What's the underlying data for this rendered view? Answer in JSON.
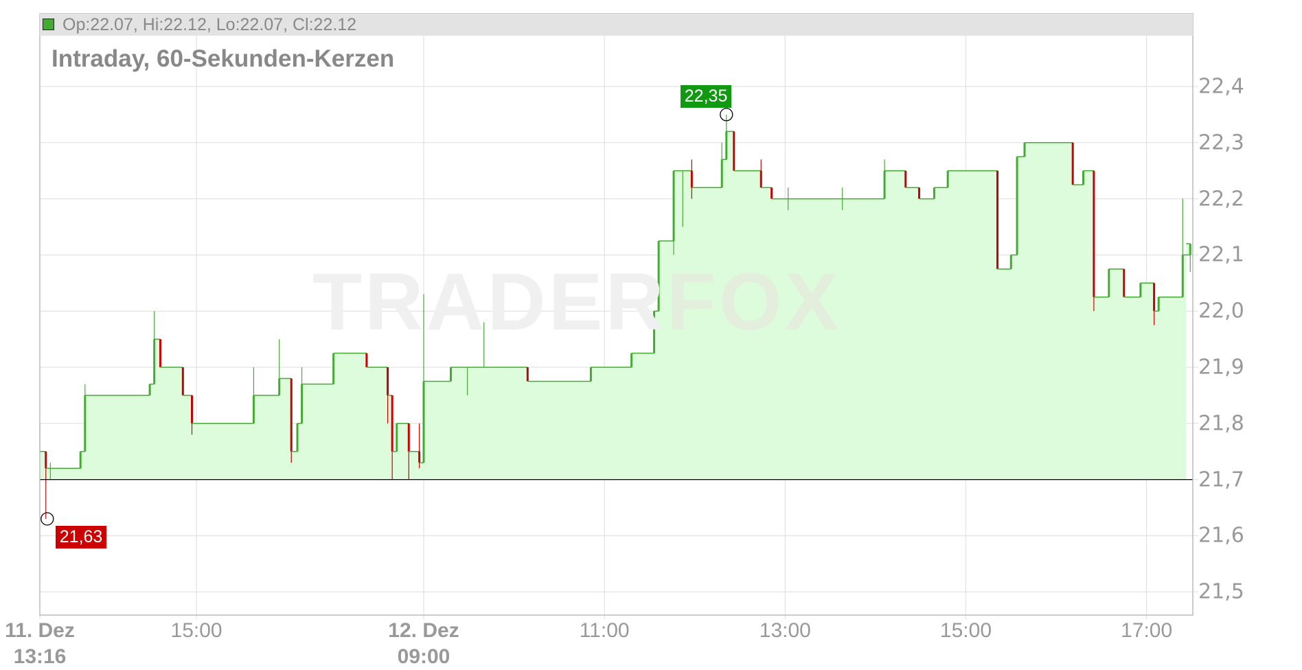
{
  "legend": {
    "text": "Op:22.07, Hi:22.12, Lo:22.07, Cl:22.12",
    "swatch_color": "#44aa33"
  },
  "title": "Intraday, 60-Sekunden-Kerzen",
  "watermark": {
    "part1": "TRADER",
    "part2": "FOX"
  },
  "colors": {
    "up": "#44aa33",
    "down": "#cc0000",
    "fill": "#dcfcdc",
    "grid": "#dddddd",
    "baseline": "#000000"
  },
  "chart_data": {
    "type": "line",
    "title": "Intraday, 60-Sekunden-Kerzen",
    "ylim": [
      21.45,
      22.5
    ],
    "yticks": [
      "22,4",
      "22,3",
      "22,2",
      "22,1",
      "22,0",
      "21,9",
      "21,8",
      "21,7",
      "21,6",
      "21,5"
    ],
    "ytick_values": [
      22.4,
      22.3,
      22.2,
      22.1,
      22.0,
      21.9,
      21.8,
      21.7,
      21.6,
      21.5
    ],
    "xticks": [
      {
        "label": "11. Dez",
        "sub": "13:16",
        "day": 1,
        "time": "13:16",
        "bold": true
      },
      {
        "label": "15:00",
        "sub": "",
        "day": 1,
        "time": "15:00",
        "bold": false
      },
      {
        "label": "12. Dez",
        "sub": "09:00",
        "day": 2,
        "time": "09:00",
        "bold": true
      },
      {
        "label": "11:00",
        "sub": "",
        "day": 2,
        "time": "11:00",
        "bold": false
      },
      {
        "label": "13:00",
        "sub": "",
        "day": 2,
        "time": "13:00",
        "bold": false
      },
      {
        "label": "15:00",
        "sub": "",
        "day": 2,
        "time": "15:00",
        "bold": false
      },
      {
        "label": "17:00",
        "sub": "",
        "day": 2,
        "time": "17:00",
        "bold": false
      }
    ],
    "sessions": [
      {
        "day": 1,
        "start": "13:16",
        "end": "17:30"
      },
      {
        "day": 2,
        "start": "09:00",
        "end": "17:30"
      }
    ],
    "baseline": 21.7,
    "grid": true,
    "high": {
      "value": 22.35,
      "label": "22,35",
      "day": 2,
      "time": "12:21"
    },
    "low": {
      "value": 21.63,
      "label": "21,63",
      "day": 1,
      "time": "13:20"
    },
    "columns": [
      "day",
      "time",
      "close",
      "high",
      "low"
    ],
    "series": [
      [
        1,
        "13:16",
        21.75,
        21.8,
        21.75
      ],
      [
        1,
        "13:20",
        21.72,
        21.75,
        21.63
      ],
      [
        1,
        "13:23",
        21.72,
        21.73,
        21.7
      ],
      [
        1,
        "13:43",
        21.75,
        21.75,
        21.72
      ],
      [
        1,
        "13:46",
        21.85,
        21.87,
        21.85
      ],
      [
        1,
        "14:29",
        21.87,
        21.87,
        21.85
      ],
      [
        1,
        "14:32",
        21.95,
        22.0,
        21.92
      ],
      [
        1,
        "14:36",
        21.9,
        21.92,
        21.9
      ],
      [
        1,
        "14:51",
        21.85,
        21.85,
        21.85
      ],
      [
        1,
        "14:57",
        21.8,
        21.8,
        21.78
      ],
      [
        1,
        "15:02",
        21.8,
        21.8,
        21.8
      ],
      [
        1,
        "15:38",
        21.85,
        21.9,
        21.85
      ],
      [
        1,
        "15:55",
        21.88,
        21.95,
        21.85
      ],
      [
        1,
        "16:03",
        21.75,
        21.88,
        21.73
      ],
      [
        1,
        "16:07",
        21.8,
        21.8,
        21.75
      ],
      [
        1,
        "16:10",
        21.87,
        21.9,
        21.85
      ],
      [
        1,
        "16:31",
        21.925,
        21.925,
        21.9
      ],
      [
        1,
        "16:53",
        21.9,
        21.92,
        21.9
      ],
      [
        1,
        "17:07",
        21.85,
        21.85,
        21.8
      ],
      [
        1,
        "17:10",
        21.75,
        21.85,
        21.7
      ],
      [
        1,
        "17:13",
        21.8,
        21.8,
        21.75
      ],
      [
        1,
        "17:21",
        21.75,
        21.8,
        21.7
      ],
      [
        1,
        "17:28",
        21.73,
        21.8,
        21.72
      ],
      [
        2,
        "09:00",
        21.875,
        22.03,
        21.73
      ],
      [
        2,
        "09:18",
        21.9,
        21.9,
        21.875
      ],
      [
        2,
        "09:29",
        21.9,
        21.9,
        21.85
      ],
      [
        2,
        "09:40",
        21.9,
        21.98,
        21.9
      ],
      [
        2,
        "10:09",
        21.875,
        21.9,
        21.875
      ],
      [
        2,
        "10:51",
        21.9,
        21.9,
        21.9
      ],
      [
        2,
        "11:18",
        21.925,
        21.925,
        21.9
      ],
      [
        2,
        "11:33",
        22.0,
        22.0,
        21.925
      ],
      [
        2,
        "11:36",
        22.125,
        22.125,
        22.1
      ],
      [
        2,
        "11:46",
        22.25,
        22.25,
        22.1
      ],
      [
        2,
        "11:52",
        22.25,
        22.25,
        22.15
      ],
      [
        2,
        "11:58",
        22.22,
        22.27,
        22.2
      ],
      [
        2,
        "12:18",
        22.27,
        22.3,
        22.22
      ],
      [
        2,
        "12:21",
        22.32,
        22.35,
        22.27
      ],
      [
        2,
        "12:26",
        22.25,
        22.27,
        22.25
      ],
      [
        2,
        "12:44",
        22.22,
        22.27,
        22.22
      ],
      [
        2,
        "12:51",
        22.2,
        22.22,
        22.2
      ],
      [
        2,
        "13:02",
        22.2,
        22.22,
        22.18
      ],
      [
        2,
        "13:38",
        22.2,
        22.22,
        22.18
      ],
      [
        2,
        "14:06",
        22.25,
        22.27,
        22.25
      ],
      [
        2,
        "14:20",
        22.22,
        22.22,
        22.22
      ],
      [
        2,
        "14:29",
        22.2,
        22.2,
        22.2
      ],
      [
        2,
        "14:39",
        22.22,
        22.22,
        22.22
      ],
      [
        2,
        "14:48",
        22.25,
        22.25,
        22.25
      ],
      [
        2,
        "15:21",
        22.075,
        22.25,
        22.075
      ],
      [
        2,
        "15:30",
        22.1,
        22.1,
        22.075
      ],
      [
        2,
        "15:34",
        22.275,
        22.275,
        22.1
      ],
      [
        2,
        "15:39",
        22.3,
        22.3,
        22.275
      ],
      [
        2,
        "16:11",
        22.225,
        22.3,
        22.225
      ],
      [
        2,
        "16:18",
        22.25,
        22.25,
        22.225
      ],
      [
        2,
        "16:25",
        22.025,
        22.25,
        22.0
      ],
      [
        2,
        "16:35",
        22.075,
        22.075,
        22.025
      ],
      [
        2,
        "16:45",
        22.025,
        22.025,
        22.025
      ],
      [
        2,
        "16:56",
        22.05,
        22.05,
        22.025
      ],
      [
        2,
        "17:05",
        22.0,
        22.025,
        21.975
      ],
      [
        2,
        "17:08",
        22.025,
        22.025,
        22.0
      ],
      [
        2,
        "17:24",
        22.1,
        22.2,
        22.025
      ],
      [
        2,
        "17:29",
        22.12,
        22.12,
        22.07
      ]
    ]
  }
}
